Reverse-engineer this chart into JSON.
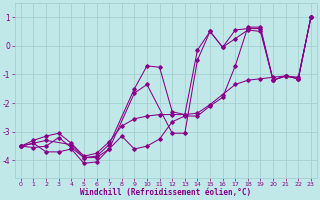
{
  "background_color": "#c0e8e8",
  "grid_color": "#a0cccc",
  "line_color": "#880088",
  "xlabel": "Windchill (Refroidissement éolien,°C)",
  "xlim": [
    -0.5,
    23.5
  ],
  "ylim": [
    -4.6,
    1.5
  ],
  "yticks": [
    1,
    0,
    -1,
    -2,
    -3,
    -4
  ],
  "xticks": [
    0,
    1,
    2,
    3,
    4,
    5,
    6,
    7,
    8,
    9,
    10,
    11,
    12,
    13,
    14,
    15,
    16,
    17,
    18,
    19,
    20,
    21,
    22,
    23
  ],
  "series1": [
    [
      0,
      -3.5
    ],
    [
      1,
      -3.3
    ],
    [
      2,
      -3.15
    ],
    [
      3,
      -3.05
    ],
    [
      4,
      -3.4
    ],
    [
      5,
      -3.85
    ],
    [
      6,
      -3.75
    ],
    [
      7,
      -3.35
    ],
    [
      8,
      -2.8
    ],
    [
      9,
      -2.55
    ],
    [
      10,
      -2.45
    ],
    [
      11,
      -2.4
    ],
    [
      12,
      -2.4
    ],
    [
      13,
      -2.4
    ],
    [
      14,
      -2.35
    ],
    [
      15,
      -2.05
    ],
    [
      16,
      -1.7
    ],
    [
      17,
      -1.35
    ],
    [
      18,
      -1.2
    ],
    [
      19,
      -1.15
    ],
    [
      20,
      -1.1
    ],
    [
      21,
      -1.05
    ],
    [
      22,
      -1.1
    ],
    [
      23,
      1.0
    ]
  ],
  "series2": [
    [
      0,
      -3.5
    ],
    [
      2,
      -3.3
    ],
    [
      4,
      -3.45
    ],
    [
      5,
      -3.9
    ],
    [
      6,
      -3.85
    ],
    [
      7,
      -3.45
    ],
    [
      9,
      -1.5
    ],
    [
      10,
      -0.7
    ],
    [
      11,
      -0.75
    ],
    [
      12,
      -2.3
    ],
    [
      13,
      -2.4
    ],
    [
      14,
      -0.15
    ],
    [
      15,
      0.5
    ],
    [
      16,
      -0.05
    ],
    [
      17,
      0.25
    ],
    [
      18,
      0.55
    ],
    [
      19,
      0.5
    ],
    [
      20,
      -1.2
    ],
    [
      21,
      -1.05
    ],
    [
      22,
      -1.15
    ],
    [
      23,
      1.0
    ]
  ],
  "series3": [
    [
      0,
      -3.5
    ],
    [
      1,
      -3.55
    ],
    [
      2,
      -3.5
    ],
    [
      3,
      -3.2
    ],
    [
      4,
      -3.55
    ],
    [
      5,
      -3.9
    ],
    [
      6,
      -3.9
    ],
    [
      7,
      -3.6
    ],
    [
      8,
      -3.15
    ],
    [
      9,
      -3.6
    ],
    [
      10,
      -3.5
    ],
    [
      11,
      -3.25
    ],
    [
      12,
      -2.65
    ],
    [
      13,
      -2.45
    ],
    [
      14,
      -2.45
    ],
    [
      15,
      -2.1
    ],
    [
      16,
      -1.8
    ],
    [
      17,
      -0.7
    ],
    [
      18,
      0.65
    ],
    [
      19,
      0.65
    ],
    [
      20,
      -1.2
    ],
    [
      21,
      -1.05
    ],
    [
      22,
      -1.15
    ],
    [
      23,
      1.0
    ]
  ],
  "series4": [
    [
      0,
      -3.5
    ],
    [
      1,
      -3.4
    ],
    [
      2,
      -3.7
    ],
    [
      3,
      -3.7
    ],
    [
      4,
      -3.6
    ],
    [
      5,
      -4.1
    ],
    [
      6,
      -4.05
    ],
    [
      7,
      -3.6
    ],
    [
      9,
      -1.65
    ],
    [
      10,
      -1.35
    ],
    [
      12,
      -3.05
    ],
    [
      13,
      -3.05
    ],
    [
      14,
      -0.5
    ],
    [
      15,
      0.5
    ],
    [
      16,
      -0.05
    ],
    [
      17,
      0.55
    ],
    [
      18,
      0.6
    ],
    [
      19,
      0.6
    ],
    [
      20,
      -1.2
    ],
    [
      21,
      -1.05
    ],
    [
      22,
      -1.15
    ],
    [
      23,
      1.0
    ]
  ]
}
